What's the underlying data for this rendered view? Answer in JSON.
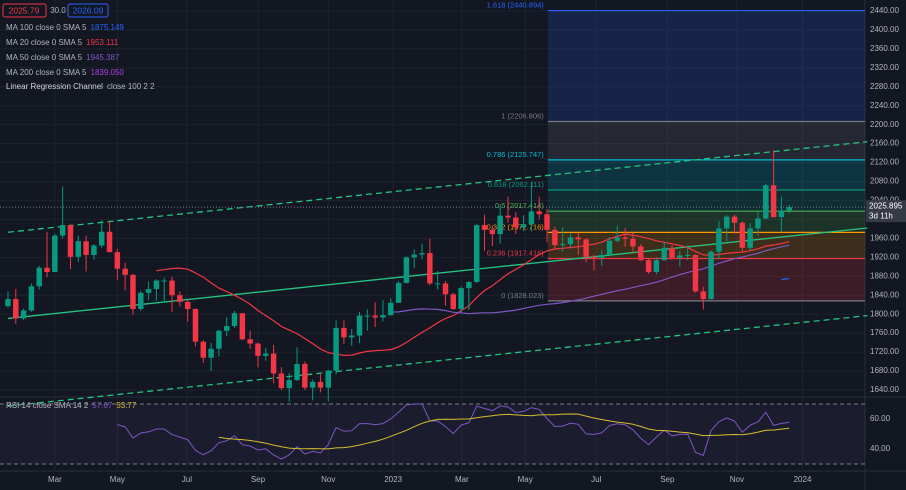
{
  "toolbar": {
    "sell": "2025.79",
    "spread": "30.0",
    "buy": "2026.09"
  },
  "chart_data": [
    {
      "type": "candlestick",
      "up_color": "#089981",
      "down_color": "#f23645",
      "xlim": [
        -1.02,
        109.7
      ],
      "ylim": [
        1629.4,
        2463.2
      ],
      "yticks": [
        {
          "value": 1640,
          "label": "1640.00"
        },
        {
          "value": 1680,
          "label": "1680.00"
        },
        {
          "value": 1720,
          "label": "1720.00"
        },
        {
          "value": 1760,
          "label": "1760.00"
        },
        {
          "value": 1800,
          "label": "1800.00"
        },
        {
          "value": 1840,
          "label": "1840.00"
        },
        {
          "value": 1880,
          "label": "1880.00"
        },
        {
          "value": 1920,
          "label": "1920.00"
        },
        {
          "value": 1960,
          "label": "1960.00"
        },
        {
          "value": 2000,
          "label": "2000.00"
        },
        {
          "value": 2040,
          "label": "2040.00"
        },
        {
          "value": 2080,
          "label": "2080.00"
        },
        {
          "value": 2120,
          "label": "2120.00"
        },
        {
          "value": 2160,
          "label": "2160.00"
        },
        {
          "value": 2200,
          "label": "2200.00"
        },
        {
          "value": 2240,
          "label": "2240.00"
        },
        {
          "value": 2280,
          "label": "2280.00"
        },
        {
          "value": 2320,
          "label": "2320.00"
        },
        {
          "value": 2360,
          "label": "2360.00"
        },
        {
          "value": 2400,
          "label": "2400.00"
        },
        {
          "value": 2440,
          "label": "2440.00"
        }
      ],
      "xticks": [
        {
          "value": 6.0,
          "label": "Mar"
        },
        {
          "value": 14.0,
          "label": "May"
        },
        {
          "value": 22.9,
          "label": "Jul"
        },
        {
          "value": 32.0,
          "label": "Sep"
        },
        {
          "value": 41.0,
          "label": "Nov"
        },
        {
          "value": 49.3,
          "label": "2023"
        },
        {
          "value": 58.1,
          "label": "Mar"
        },
        {
          "value": 66.2,
          "label": "May"
        },
        {
          "value": 75.3,
          "label": "Jul"
        },
        {
          "value": 84.4,
          "label": "Sep"
        },
        {
          "value": 93.3,
          "label": "Nov"
        },
        {
          "value": 101.7,
          "label": "2024"
        }
      ],
      "candles": [
        [
          1817,
          1848,
          1814,
          1832
        ],
        [
          1832,
          1853,
          1780,
          1791
        ],
        [
          1791,
          1812,
          1788,
          1808
        ],
        [
          1808,
          1865,
          1805,
          1859
        ],
        [
          1859,
          1902,
          1852,
          1898
        ],
        [
          1898,
          1974,
          1878,
          1889
        ],
        [
          1889,
          1970,
          1889,
          1966
        ],
        [
          1966,
          2070,
          1960,
          1988
        ],
        [
          1988,
          1990,
          1895,
          1921
        ],
        [
          1921,
          1966,
          1910,
          1954
        ],
        [
          1954,
          1966,
          1890,
          1925
        ],
        [
          1925,
          1948,
          1915,
          1945
        ],
        [
          1945,
          1998,
          1940,
          1974
        ],
        [
          1974,
          1998,
          1930,
          1931
        ],
        [
          1931,
          1938,
          1872,
          1896
        ],
        [
          1896,
          1909,
          1850,
          1883
        ],
        [
          1883,
          1885,
          1799,
          1811
        ],
        [
          1811,
          1849,
          1807,
          1845
        ],
        [
          1845,
          1869,
          1830,
          1853
        ],
        [
          1853,
          1874,
          1828,
          1871
        ],
        [
          1871,
          1877,
          1825,
          1871
        ],
        [
          1871,
          1879,
          1805,
          1840
        ],
        [
          1840,
          1848,
          1816,
          1826
        ],
        [
          1826,
          1830,
          1784,
          1811
        ],
        [
          1811,
          1812,
          1732,
          1742
        ],
        [
          1742,
          1745,
          1697,
          1708
        ],
        [
          1708,
          1739,
          1680,
          1727
        ],
        [
          1727,
          1767,
          1711,
          1765
        ],
        [
          1765,
          1794,
          1754,
          1775
        ],
        [
          1775,
          1807,
          1771,
          1802
        ],
        [
          1802,
          1802,
          1745,
          1747
        ],
        [
          1747,
          1765,
          1727,
          1738
        ],
        [
          1738,
          1740,
          1688,
          1712
        ],
        [
          1712,
          1729,
          1702,
          1717
        ],
        [
          1717,
          1735,
          1654,
          1675
        ],
        [
          1675,
          1688,
          1640,
          1644
        ],
        [
          1644,
          1676,
          1615,
          1661
        ],
        [
          1661,
          1730,
          1659,
          1695
        ],
        [
          1695,
          1700,
          1640,
          1645
        ],
        [
          1645,
          1662,
          1618,
          1657
        ],
        [
          1657,
          1673,
          1635,
          1645
        ],
        [
          1645,
          1682,
          1616,
          1681
        ],
        [
          1681,
          1787,
          1673,
          1771
        ],
        [
          1771,
          1787,
          1737,
          1751
        ],
        [
          1751,
          1769,
          1733,
          1755
        ],
        [
          1755,
          1805,
          1739,
          1797
        ],
        [
          1797,
          1810,
          1765,
          1797
        ],
        [
          1797,
          1825,
          1773,
          1793
        ],
        [
          1793,
          1830,
          1785,
          1798
        ],
        [
          1798,
          1833,
          1797,
          1824
        ],
        [
          1824,
          1870,
          1824,
          1866
        ],
        [
          1866,
          1922,
          1865,
          1920
        ],
        [
          1920,
          1937,
          1897,
          1926
        ],
        [
          1926,
          1949,
          1916,
          1929
        ],
        [
          1929,
          1959,
          1861,
          1865
        ],
        [
          1865,
          1891,
          1852,
          1865
        ],
        [
          1865,
          1870,
          1818,
          1842
        ],
        [
          1842,
          1845,
          1809,
          1811
        ],
        [
          1811,
          1858,
          1804,
          1855
        ],
        [
          1855,
          1870,
          1809,
          1868
        ],
        [
          1868,
          1990,
          1866,
          1988
        ],
        [
          1988,
          2010,
          1934,
          1978
        ],
        [
          1978,
          1987,
          1944,
          1969
        ],
        [
          1969,
          2032,
          1949,
          2008
        ],
        [
          2008,
          2048,
          1993,
          2004
        ],
        [
          2004,
          2015,
          1969,
          1983
        ],
        [
          1983,
          2009,
          1975,
          1990
        ],
        [
          1990,
          2079,
          1975,
          2017
        ],
        [
          2017,
          2048,
          2000,
          2011
        ],
        [
          2011,
          2022,
          1952,
          1978
        ],
        [
          1978,
          1985,
          1937,
          1946
        ],
        [
          1946,
          1983,
          1932,
          1948
        ],
        [
          1948,
          1971,
          1940,
          1962
        ],
        [
          1962,
          1971,
          1925,
          1958
        ],
        [
          1958,
          1960,
          1910,
          1921
        ],
        [
          1921,
          1925,
          1893,
          1919
        ],
        [
          1919,
          1935,
          1902,
          1925
        ],
        [
          1925,
          1963,
          1923,
          1955
        ],
        [
          1955,
          1987,
          1952,
          1962
        ],
        [
          1962,
          1982,
          1942,
          1959
        ],
        [
          1959,
          1972,
          1928,
          1943
        ],
        [
          1943,
          1948,
          1912,
          1914
        ],
        [
          1914,
          1917,
          1885,
          1889
        ],
        [
          1889,
          1920,
          1884,
          1914
        ],
        [
          1914,
          1953,
          1913,
          1940
        ],
        [
          1940,
          1946,
          1915,
          1919
        ],
        [
          1919,
          1934,
          1900,
          1924
        ],
        [
          1924,
          1947,
          1914,
          1925
        ],
        [
          1925,
          1926,
          1846,
          1848
        ],
        [
          1848,
          1858,
          1810,
          1832
        ],
        [
          1832,
          1935,
          1831,
          1932
        ],
        [
          1932,
          1997,
          1916,
          1981
        ],
        [
          1981,
          2009,
          1954,
          2006
        ],
        [
          2006,
          2010,
          1970,
          1993
        ],
        [
          1993,
          1996,
          1931,
          1940
        ],
        [
          1940,
          1993,
          1935,
          1981
        ],
        [
          1981,
          2018,
          1965,
          2002
        ],
        [
          2002,
          2075,
          2000,
          2072
        ],
        [
          2072,
          2146,
          2004,
          2005
        ],
        [
          2005,
          2048,
          1973,
          2019
        ],
        [
          2019,
          2031,
          2014,
          2026
        ]
      ],
      "series": [
        {
          "name": "MA 100 close 0 SMA 5",
          "value_label": "1875.149",
          "color": "#2962ff",
          "period": 100
        },
        {
          "name": "MA 20 close 0 SMA 5",
          "value_label": "1953.111",
          "color": "#f23645",
          "period": 20
        },
        {
          "name": "MA 50 close 0 SMA 5",
          "value_label": "1945.387",
          "color": "#7e57c2",
          "period": 50
        },
        {
          "name": "MA 200 close 0 SMA 5",
          "value_label": "1839.050",
          "color": "#b040e0",
          "period": 200
        }
      ],
      "regression_channel": {
        "name": "Linear Regression Channel",
        "settings": "close 100 2 2",
        "color": "#26c281",
        "x": [
          0,
          110
        ],
        "upper": [
          1973,
          2164
        ],
        "mid": [
          1791,
          1982
        ],
        "lower": [
          1606,
          1797
        ]
      },
      "fib_start_x": 69.1,
      "fib_levels": [
        {
          "value": 1828.023,
          "label": "0 (1828.023)",
          "color": "#787b86"
        },
        {
          "value": 1917.416,
          "label": "0.236 (1917.416)",
          "color": "#f23645"
        },
        {
          "value": 1972.716,
          "label": "0.382 (1972.716)",
          "color": "#ff9800"
        },
        {
          "value": 2017.414,
          "label": "0.5 (2017.414)",
          "color": "#4caf50"
        },
        {
          "value": 2062.111,
          "label": "0.618 (2062.111)",
          "color": "#089981"
        },
        {
          "value": 2125.747,
          "label": "0.786 (2125.747)",
          "color": "#00bcd4"
        },
        {
          "value": 2206.806,
          "label": "1 (2206.806)",
          "color": "#787b86"
        },
        {
          "value": 2440.894,
          "label": "1.618 (2440.894)",
          "color": "#2962ff"
        }
      ],
      "price_tag": {
        "value": 2025.895,
        "countdown": "3d 11h"
      }
    },
    {
      "type": "rsi",
      "name": "RSI 14 close SMA 14 2",
      "value_label": "57.67",
      "signal_label": "53.77",
      "color": "#7e57c2",
      "signal_color": "#d4c02f",
      "period": 14,
      "ylim": [
        26,
        74
      ],
      "band": [
        30,
        70
      ],
      "yticks": [
        {
          "value": 60,
          "label": "60.00"
        },
        {
          "value": 40,
          "label": "40.00"
        }
      ]
    }
  ]
}
